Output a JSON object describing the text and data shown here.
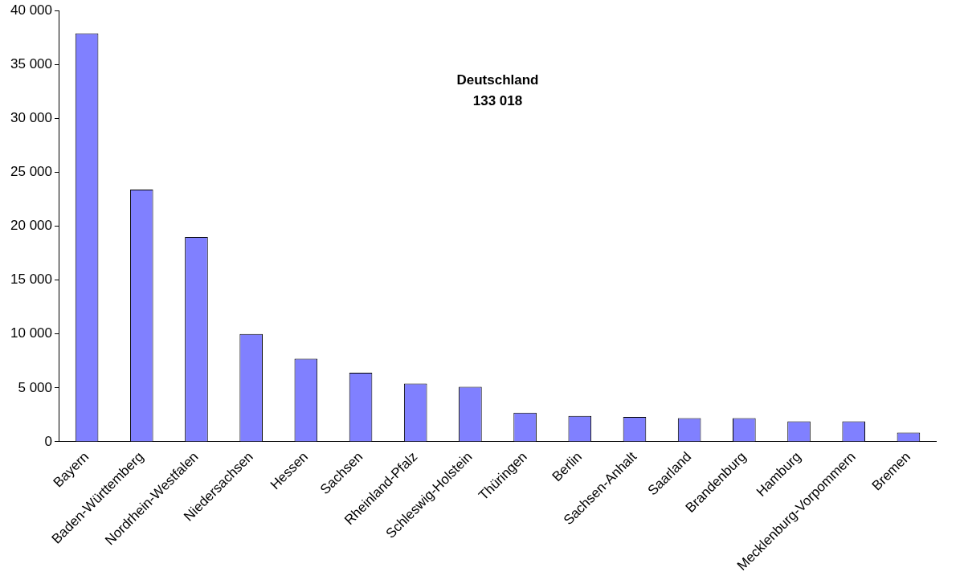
{
  "chart_data": {
    "type": "bar",
    "categories": [
      "Bayern",
      "Baden-Württemberg",
      "Nordrhein-Westfalen",
      "Niedersachsen",
      "Hessen",
      "Sachsen",
      "Rheinland-Pfalz",
      "Schleswig-Holstein",
      "Thüringen",
      "Berlin",
      "Sachsen-Anhalt",
      "Saarland",
      "Brandenburg",
      "Hamburg",
      "Mecklenburg-Vorpommern",
      "Bremen"
    ],
    "values": [
      37900,
      23400,
      19000,
      10000,
      7700,
      6400,
      5400,
      5100,
      2700,
      2400,
      2300,
      2200,
      2200,
      1900,
      1900,
      850
    ],
    "color": "#8080ff",
    "ylim": [
      0,
      40000
    ],
    "yticks": [
      {
        "value": 0,
        "label": "0"
      },
      {
        "value": 5000,
        "label": "5 000"
      },
      {
        "value": 10000,
        "label": "10 000"
      },
      {
        "value": 15000,
        "label": "15 000"
      },
      {
        "value": 20000,
        "label": "20 000"
      },
      {
        "value": 25000,
        "label": "25 000"
      },
      {
        "value": 30000,
        "label": "30 000"
      },
      {
        "value": 35000,
        "label": "35 000"
      },
      {
        "value": 40000,
        "label": "40 000"
      }
    ],
    "grid": false,
    "legend": false,
    "annotations": [
      "Deutschland\n133 018"
    ]
  }
}
